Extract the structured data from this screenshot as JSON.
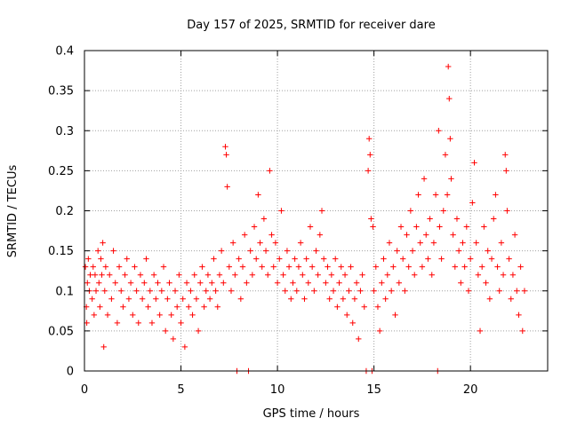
{
  "chart_data": {
    "type": "scatter",
    "title": "Day 157 of 2025, SRMTID for receiver dare",
    "xlabel": "GPS time / hours",
    "ylabel": "SRMTID / TECUs",
    "xlim": [
      0,
      24
    ],
    "ylim": [
      0,
      0.4
    ],
    "x_ticks": [
      0,
      5,
      10,
      15,
      20
    ],
    "x_tick_labels": [
      "0",
      "5",
      "10",
      "15",
      "20"
    ],
    "y_ticks": [
      0,
      0.05,
      0.1,
      0.15,
      0.2,
      0.25,
      0.3,
      0.35,
      0.4
    ],
    "y_tick_labels": [
      "0",
      "0.05",
      "0.1",
      "0.15",
      "0.2",
      "0.25",
      "0.3",
      "0.35",
      "0.4"
    ],
    "grid": true,
    "marker": "+",
    "color": "#ff0000",
    "series": [
      {
        "name": "SRMTID",
        "points": [
          [
            0.05,
            0.13
          ],
          [
            0.1,
            0.08
          ],
          [
            0.12,
            0.06
          ],
          [
            0.15,
            0.11
          ],
          [
            0.2,
            0.14
          ],
          [
            0.25,
            0.1
          ],
          [
            0.3,
            0.12
          ],
          [
            0.4,
            0.09
          ],
          [
            0.45,
            0.13
          ],
          [
            0.5,
            0.07
          ],
          [
            0.55,
            0.12
          ],
          [
            0.6,
            0.1
          ],
          [
            0.7,
            0.15
          ],
          [
            0.75,
            0.11
          ],
          [
            0.8,
            0.08
          ],
          [
            0.85,
            0.14
          ],
          [
            0.9,
            0.12
          ],
          [
            0.95,
            0.16
          ],
          [
            1.0,
            0.03
          ],
          [
            1.05,
            0.1
          ],
          [
            1.1,
            0.13
          ],
          [
            1.2,
            0.07
          ],
          [
            1.3,
            0.12
          ],
          [
            1.4,
            0.09
          ],
          [
            1.5,
            0.15
          ],
          [
            1.6,
            0.11
          ],
          [
            1.7,
            0.06
          ],
          [
            1.8,
            0.13
          ],
          [
            1.9,
            0.1
          ],
          [
            2.0,
            0.08
          ],
          [
            2.1,
            0.12
          ],
          [
            2.2,
            0.14
          ],
          [
            2.3,
            0.09
          ],
          [
            2.4,
            0.11
          ],
          [
            2.5,
            0.07
          ],
          [
            2.6,
            0.13
          ],
          [
            2.7,
            0.1
          ],
          [
            2.8,
            0.06
          ],
          [
            2.9,
            0.12
          ],
          [
            3.0,
            0.09
          ],
          [
            3.1,
            0.11
          ],
          [
            3.2,
            0.14
          ],
          [
            3.3,
            0.08
          ],
          [
            3.4,
            0.1
          ],
          [
            3.5,
            0.06
          ],
          [
            3.6,
            0.12
          ],
          [
            3.7,
            0.09
          ],
          [
            3.8,
            0.11
          ],
          [
            3.9,
            0.07
          ],
          [
            4.0,
            0.1
          ],
          [
            4.1,
            0.13
          ],
          [
            4.2,
            0.05
          ],
          [
            4.3,
            0.09
          ],
          [
            4.4,
            0.11
          ],
          [
            4.5,
            0.07
          ],
          [
            4.6,
            0.04
          ],
          [
            4.7,
            0.1
          ],
          [
            4.8,
            0.08
          ],
          [
            4.9,
            0.12
          ],
          [
            5.0,
            0.06
          ],
          [
            5.1,
            0.09
          ],
          [
            5.2,
            0.03
          ],
          [
            5.3,
            0.11
          ],
          [
            5.4,
            0.08
          ],
          [
            5.5,
            0.1
          ],
          [
            5.6,
            0.07
          ],
          [
            5.7,
            0.12
          ],
          [
            5.8,
            0.09
          ],
          [
            5.9,
            0.05
          ],
          [
            6.0,
            0.11
          ],
          [
            6.1,
            0.13
          ],
          [
            6.2,
            0.08
          ],
          [
            6.3,
            0.1
          ],
          [
            6.4,
            0.12
          ],
          [
            6.5,
            0.09
          ],
          [
            6.6,
            0.11
          ],
          [
            6.7,
            0.14
          ],
          [
            6.8,
            0.1
          ],
          [
            6.9,
            0.08
          ],
          [
            7.0,
            0.12
          ],
          [
            7.1,
            0.15
          ],
          [
            7.2,
            0.11
          ],
          [
            7.3,
            0.28
          ],
          [
            7.35,
            0.27
          ],
          [
            7.4,
            0.23
          ],
          [
            7.5,
            0.13
          ],
          [
            7.6,
            0.1
          ],
          [
            7.7,
            0.16
          ],
          [
            7.8,
            0.12
          ],
          [
            7.9,
            0.0
          ],
          [
            8.0,
            0.14
          ],
          [
            8.1,
            0.09
          ],
          [
            8.2,
            0.13
          ],
          [
            8.3,
            0.17
          ],
          [
            8.4,
            0.11
          ],
          [
            8.5,
            0.0
          ],
          [
            8.6,
            0.15
          ],
          [
            8.7,
            0.12
          ],
          [
            8.8,
            0.18
          ],
          [
            8.9,
            0.14
          ],
          [
            9.0,
            0.22
          ],
          [
            9.1,
            0.16
          ],
          [
            9.2,
            0.13
          ],
          [
            9.3,
            0.19
          ],
          [
            9.4,
            0.15
          ],
          [
            9.5,
            0.12
          ],
          [
            9.6,
            0.25
          ],
          [
            9.7,
            0.17
          ],
          [
            9.8,
            0.13
          ],
          [
            9.9,
            0.16
          ],
          [
            10.0,
            0.11
          ],
          [
            10.1,
            0.14
          ],
          [
            10.2,
            0.2
          ],
          [
            10.3,
            0.12
          ],
          [
            10.4,
            0.1
          ],
          [
            10.5,
            0.15
          ],
          [
            10.6,
            0.13
          ],
          [
            10.7,
            0.09
          ],
          [
            10.8,
            0.11
          ],
          [
            10.9,
            0.14
          ],
          [
            11.0,
            0.1
          ],
          [
            11.1,
            0.13
          ],
          [
            11.2,
            0.16
          ],
          [
            11.3,
            0.12
          ],
          [
            11.4,
            0.09
          ],
          [
            11.5,
            0.14
          ],
          [
            11.6,
            0.11
          ],
          [
            11.7,
            0.18
          ],
          [
            11.8,
            0.13
          ],
          [
            11.9,
            0.1
          ],
          [
            12.0,
            0.15
          ],
          [
            12.1,
            0.12
          ],
          [
            12.2,
            0.17
          ],
          [
            12.3,
            0.2
          ],
          [
            12.4,
            0.14
          ],
          [
            12.5,
            0.11
          ],
          [
            12.6,
            0.13
          ],
          [
            12.7,
            0.09
          ],
          [
            12.8,
            0.12
          ],
          [
            12.9,
            0.1
          ],
          [
            13.0,
            0.14
          ],
          [
            13.1,
            0.08
          ],
          [
            13.2,
            0.11
          ],
          [
            13.3,
            0.13
          ],
          [
            13.4,
            0.09
          ],
          [
            13.5,
            0.12
          ],
          [
            13.6,
            0.07
          ],
          [
            13.7,
            0.1
          ],
          [
            13.8,
            0.13
          ],
          [
            13.9,
            0.06
          ],
          [
            14.0,
            0.09
          ],
          [
            14.1,
            0.11
          ],
          [
            14.2,
            0.04
          ],
          [
            14.3,
            0.1
          ],
          [
            14.4,
            0.12
          ],
          [
            14.5,
            0.08
          ],
          [
            14.6,
            0.0
          ],
          [
            14.7,
            0.25
          ],
          [
            14.75,
            0.29
          ],
          [
            14.8,
            0.27
          ],
          [
            14.85,
            0.19
          ],
          [
            14.9,
            0.0
          ],
          [
            14.95,
            0.18
          ],
          [
            15.0,
            0.1
          ],
          [
            15.1,
            0.13
          ],
          [
            15.2,
            0.08
          ],
          [
            15.3,
            0.05
          ],
          [
            15.4,
            0.11
          ],
          [
            15.5,
            0.14
          ],
          [
            15.6,
            0.09
          ],
          [
            15.7,
            0.12
          ],
          [
            15.8,
            0.16
          ],
          [
            15.9,
            0.1
          ],
          [
            16.0,
            0.13
          ],
          [
            16.1,
            0.07
          ],
          [
            16.2,
            0.15
          ],
          [
            16.3,
            0.11
          ],
          [
            16.4,
            0.18
          ],
          [
            16.5,
            0.14
          ],
          [
            16.6,
            0.1
          ],
          [
            16.7,
            0.17
          ],
          [
            16.8,
            0.13
          ],
          [
            16.9,
            0.2
          ],
          [
            17.0,
            0.15
          ],
          [
            17.1,
            0.12
          ],
          [
            17.2,
            0.18
          ],
          [
            17.3,
            0.22
          ],
          [
            17.4,
            0.16
          ],
          [
            17.5,
            0.13
          ],
          [
            17.6,
            0.24
          ],
          [
            17.7,
            0.17
          ],
          [
            17.8,
            0.14
          ],
          [
            17.9,
            0.19
          ],
          [
            18.0,
            0.12
          ],
          [
            18.1,
            0.16
          ],
          [
            18.2,
            0.22
          ],
          [
            18.3,
            0.0
          ],
          [
            18.35,
            0.3
          ],
          [
            18.4,
            0.18
          ],
          [
            18.5,
            0.14
          ],
          [
            18.6,
            0.2
          ],
          [
            18.7,
            0.27
          ],
          [
            18.8,
            0.22
          ],
          [
            18.85,
            0.38
          ],
          [
            18.9,
            0.34
          ],
          [
            18.95,
            0.29
          ],
          [
            19.0,
            0.24
          ],
          [
            19.1,
            0.17
          ],
          [
            19.2,
            0.13
          ],
          [
            19.3,
            0.19
          ],
          [
            19.4,
            0.15
          ],
          [
            19.5,
            0.11
          ],
          [
            19.6,
            0.16
          ],
          [
            19.7,
            0.13
          ],
          [
            19.8,
            0.18
          ],
          [
            19.9,
            0.1
          ],
          [
            20.0,
            0.14
          ],
          [
            20.1,
            0.21
          ],
          [
            20.2,
            0.26
          ],
          [
            20.3,
            0.16
          ],
          [
            20.4,
            0.12
          ],
          [
            20.5,
            0.05
          ],
          [
            20.6,
            0.13
          ],
          [
            20.7,
            0.18
          ],
          [
            20.8,
            0.11
          ],
          [
            20.9,
            0.15
          ],
          [
            21.0,
            0.09
          ],
          [
            21.1,
            0.14
          ],
          [
            21.2,
            0.19
          ],
          [
            21.3,
            0.22
          ],
          [
            21.4,
            0.13
          ],
          [
            21.5,
            0.1
          ],
          [
            21.6,
            0.16
          ],
          [
            21.7,
            0.12
          ],
          [
            21.8,
            0.27
          ],
          [
            21.85,
            0.25
          ],
          [
            21.9,
            0.2
          ],
          [
            22.0,
            0.14
          ],
          [
            22.1,
            0.09
          ],
          [
            22.2,
            0.12
          ],
          [
            22.3,
            0.17
          ],
          [
            22.4,
            0.1
          ],
          [
            22.5,
            0.07
          ],
          [
            22.6,
            0.13
          ],
          [
            22.7,
            0.05
          ],
          [
            22.8,
            0.1
          ]
        ]
      }
    ]
  }
}
